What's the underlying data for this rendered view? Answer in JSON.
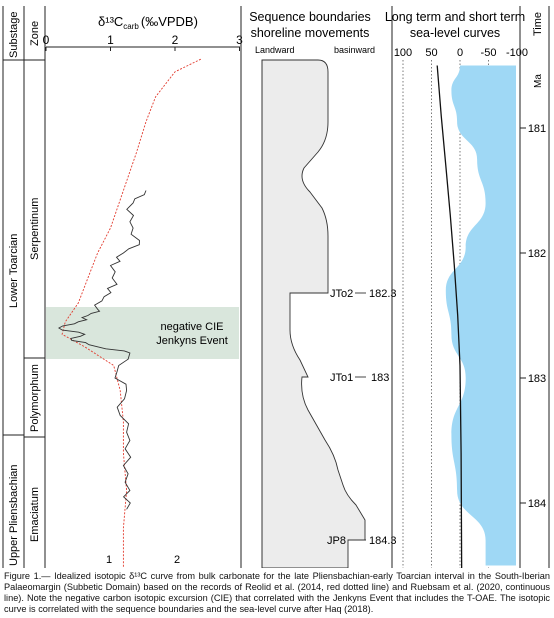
{
  "columns": {
    "substage": "Substage",
    "zone": "Zone",
    "isotope": "δ¹³C",
    "isotope_sub": "carb",
    "isotope_unit": "(‰VPDB)",
    "sequence_title_1": "Sequence boundaries",
    "sequence_title_2": "shoreline movements",
    "landward": "Landward",
    "basinward": "basinward",
    "sealevel_title_1": "Long term and short term",
    "sealevel_title_2": "sea-level curves",
    "time": "Time",
    "ma": "Ma"
  },
  "substages": [
    "Lower Toarcian",
    "Upper Pliensbachian"
  ],
  "zones": [
    "Serpentinum",
    "Polymorphum",
    "Emaciatum"
  ],
  "isotope_top_ticks": [
    "0",
    "1",
    "2",
    "3"
  ],
  "isotope_bottom_ticks": [
    "1",
    "2"
  ],
  "sealevel_ticks": [
    "100",
    "50",
    "0",
    "-50",
    "-100"
  ],
  "time_ticks": [
    "181",
    "182",
    "183",
    "184"
  ],
  "cie": {
    "label_1": "negative CIE",
    "label_2": "Jenkyns Event"
  },
  "boundaries": [
    {
      "name": "JTo2",
      "age": "182.3"
    },
    {
      "name": "JTo1",
      "age": "183"
    },
    {
      "name": "JP8",
      "age": "184.3"
    }
  ],
  "colors": {
    "cie_band": "#d9e6dc",
    "sea_fill": "#9fd8f5",
    "shoreline_fill": "#ececec",
    "reolid_line": "#e23b2e",
    "ruebsam_line": "#333333"
  },
  "chart_data": [
    {
      "type": "line",
      "title": "δ13C carb (‰VPDB)",
      "xlim": [
        0,
        3
      ],
      "series": [
        {
          "name": "Reolid et al. (2014)",
          "style": "red dotted",
          "points_x": [
            2.4,
            2.0,
            1.7,
            1.55,
            1.4,
            1.2,
            1.0,
            0.8,
            0.65,
            0.5,
            0.3,
            0.25,
            0.6,
            1.05,
            1.15,
            1.2,
            1.2,
            1.25,
            1.2,
            1.2
          ],
          "points_y_ma": [
            180.45,
            180.55,
            180.75,
            180.95,
            181.2,
            181.5,
            181.8,
            182.0,
            182.2,
            182.4,
            182.55,
            182.65,
            182.75,
            182.9,
            183.1,
            183.35,
            183.6,
            183.9,
            184.2,
            184.6
          ]
        },
        {
          "name": "Ruebsam et al. (2020)",
          "style": "black solid",
          "points_x": [
            1.55,
            1.35,
            1.3,
            1.45,
            1.2,
            1.0,
            1.1,
            0.9,
            0.8,
            0.65,
            0.5,
            0.2,
            0.6,
            0.4,
            0.8,
            1.3,
            1.1,
            1.25,
            1.15,
            1.3,
            1.2,
            1.3,
            1.25
          ],
          "points_y_ma": [
            181.5,
            181.6,
            181.75,
            181.9,
            182.0,
            182.1,
            182.25,
            182.35,
            182.45,
            182.5,
            182.55,
            182.6,
            182.65,
            182.7,
            182.75,
            182.8,
            182.95,
            183.1,
            183.3,
            183.5,
            183.7,
            183.9,
            184.05
          ]
        }
      ]
    },
    {
      "type": "area",
      "title": "Long term and short term sea-level curves",
      "xlim": [
        100,
        -100
      ],
      "series": [
        {
          "name": "long-term",
          "style": "black line",
          "points_x": [
            40,
            33,
            25,
            17,
            10,
            4,
            0,
            -2,
            -3
          ],
          "points_y_ma": [
            180.5,
            180.9,
            181.3,
            181.7,
            182.1,
            182.5,
            182.9,
            183.6,
            184.6
          ]
        },
        {
          "name": "short-term",
          "style": "blue fill",
          "points_x": [
            0,
            15,
            5,
            -30,
            -45,
            -10,
            25,
            15,
            -10,
            15,
            5,
            -45,
            -45
          ],
          "points_y_ma": [
            180.5,
            180.7,
            180.95,
            181.25,
            181.6,
            181.95,
            182.3,
            182.65,
            183.0,
            183.45,
            183.9,
            184.3,
            184.5
          ]
        }
      ]
    }
  ]
}
